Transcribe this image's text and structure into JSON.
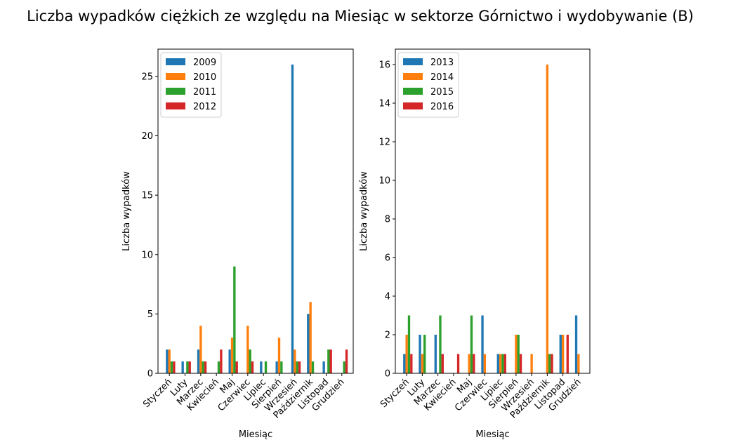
{
  "figure": {
    "title": "Liczba wypadków ciężkich ze względu na Miesiąc w sektorze Górnictwo i wydobywanie (B)"
  },
  "chart_data": [
    {
      "type": "bar",
      "title": "",
      "xlabel": "Miesiąc",
      "ylabel": "Liczba wypadków",
      "categories": [
        "Styczeń",
        "Luty",
        "Marzec",
        "Kwiecień",
        "Maj",
        "Czerwiec",
        "Lipiec",
        "Sierpień",
        "Wrzesień",
        "Październik",
        "Listopad",
        "Grudzień"
      ],
      "ylim": [
        0,
        27.3
      ],
      "yticks": [
        0,
        5,
        10,
        15,
        20,
        25
      ],
      "legend_position": "upper-left",
      "series": [
        {
          "name": "2009",
          "color": "#1f77b4",
          "values": [
            2,
            1,
            2,
            0,
            2,
            0,
            1,
            1,
            26,
            5,
            1,
            0
          ]
        },
        {
          "name": "2010",
          "color": "#ff7f0e",
          "values": [
            2,
            0,
            4,
            0,
            3,
            4,
            0,
            3,
            2,
            6,
            0,
            0
          ]
        },
        {
          "name": "2011",
          "color": "#2ca02c",
          "values": [
            1,
            1,
            1,
            1,
            9,
            2,
            1,
            1,
            1,
            1,
            2,
            1
          ]
        },
        {
          "name": "2012",
          "color": "#d62728",
          "values": [
            1,
            1,
            1,
            2,
            1,
            1,
            0,
            0,
            1,
            0,
            2,
            2
          ]
        }
      ]
    },
    {
      "type": "bar",
      "title": "",
      "xlabel": "Miesiąc",
      "ylabel": "Liczba wypadków",
      "categories": [
        "Styczeń",
        "Luty",
        "Marzec",
        "Kwiecień",
        "Maj",
        "Czerwiec",
        "Lipiec",
        "Sierpień",
        "Wrzesień",
        "Październik",
        "Listopad",
        "Grudzień"
      ],
      "ylim": [
        0,
        16.8
      ],
      "yticks": [
        0,
        2,
        4,
        6,
        8,
        10,
        12,
        14,
        16
      ],
      "legend_position": "upper-left",
      "series": [
        {
          "name": "2013",
          "color": "#1f77b4",
          "values": [
            1,
            2,
            2,
            0,
            0,
            3,
            1,
            0,
            0,
            0,
            2,
            3
          ]
        },
        {
          "name": "2014",
          "color": "#ff7f0e",
          "values": [
            2,
            1,
            0,
            0,
            1,
            1,
            1,
            2,
            1,
            16,
            2,
            1
          ]
        },
        {
          "name": "2015",
          "color": "#2ca02c",
          "values": [
            3,
            2,
            3,
            0,
            3,
            0,
            1,
            2,
            0,
            1,
            0,
            0
          ]
        },
        {
          "name": "2016",
          "color": "#d62728",
          "values": [
            1,
            0,
            1,
            1,
            1,
            0,
            1,
            1,
            0,
            1,
            2,
            0
          ]
        }
      ]
    }
  ]
}
